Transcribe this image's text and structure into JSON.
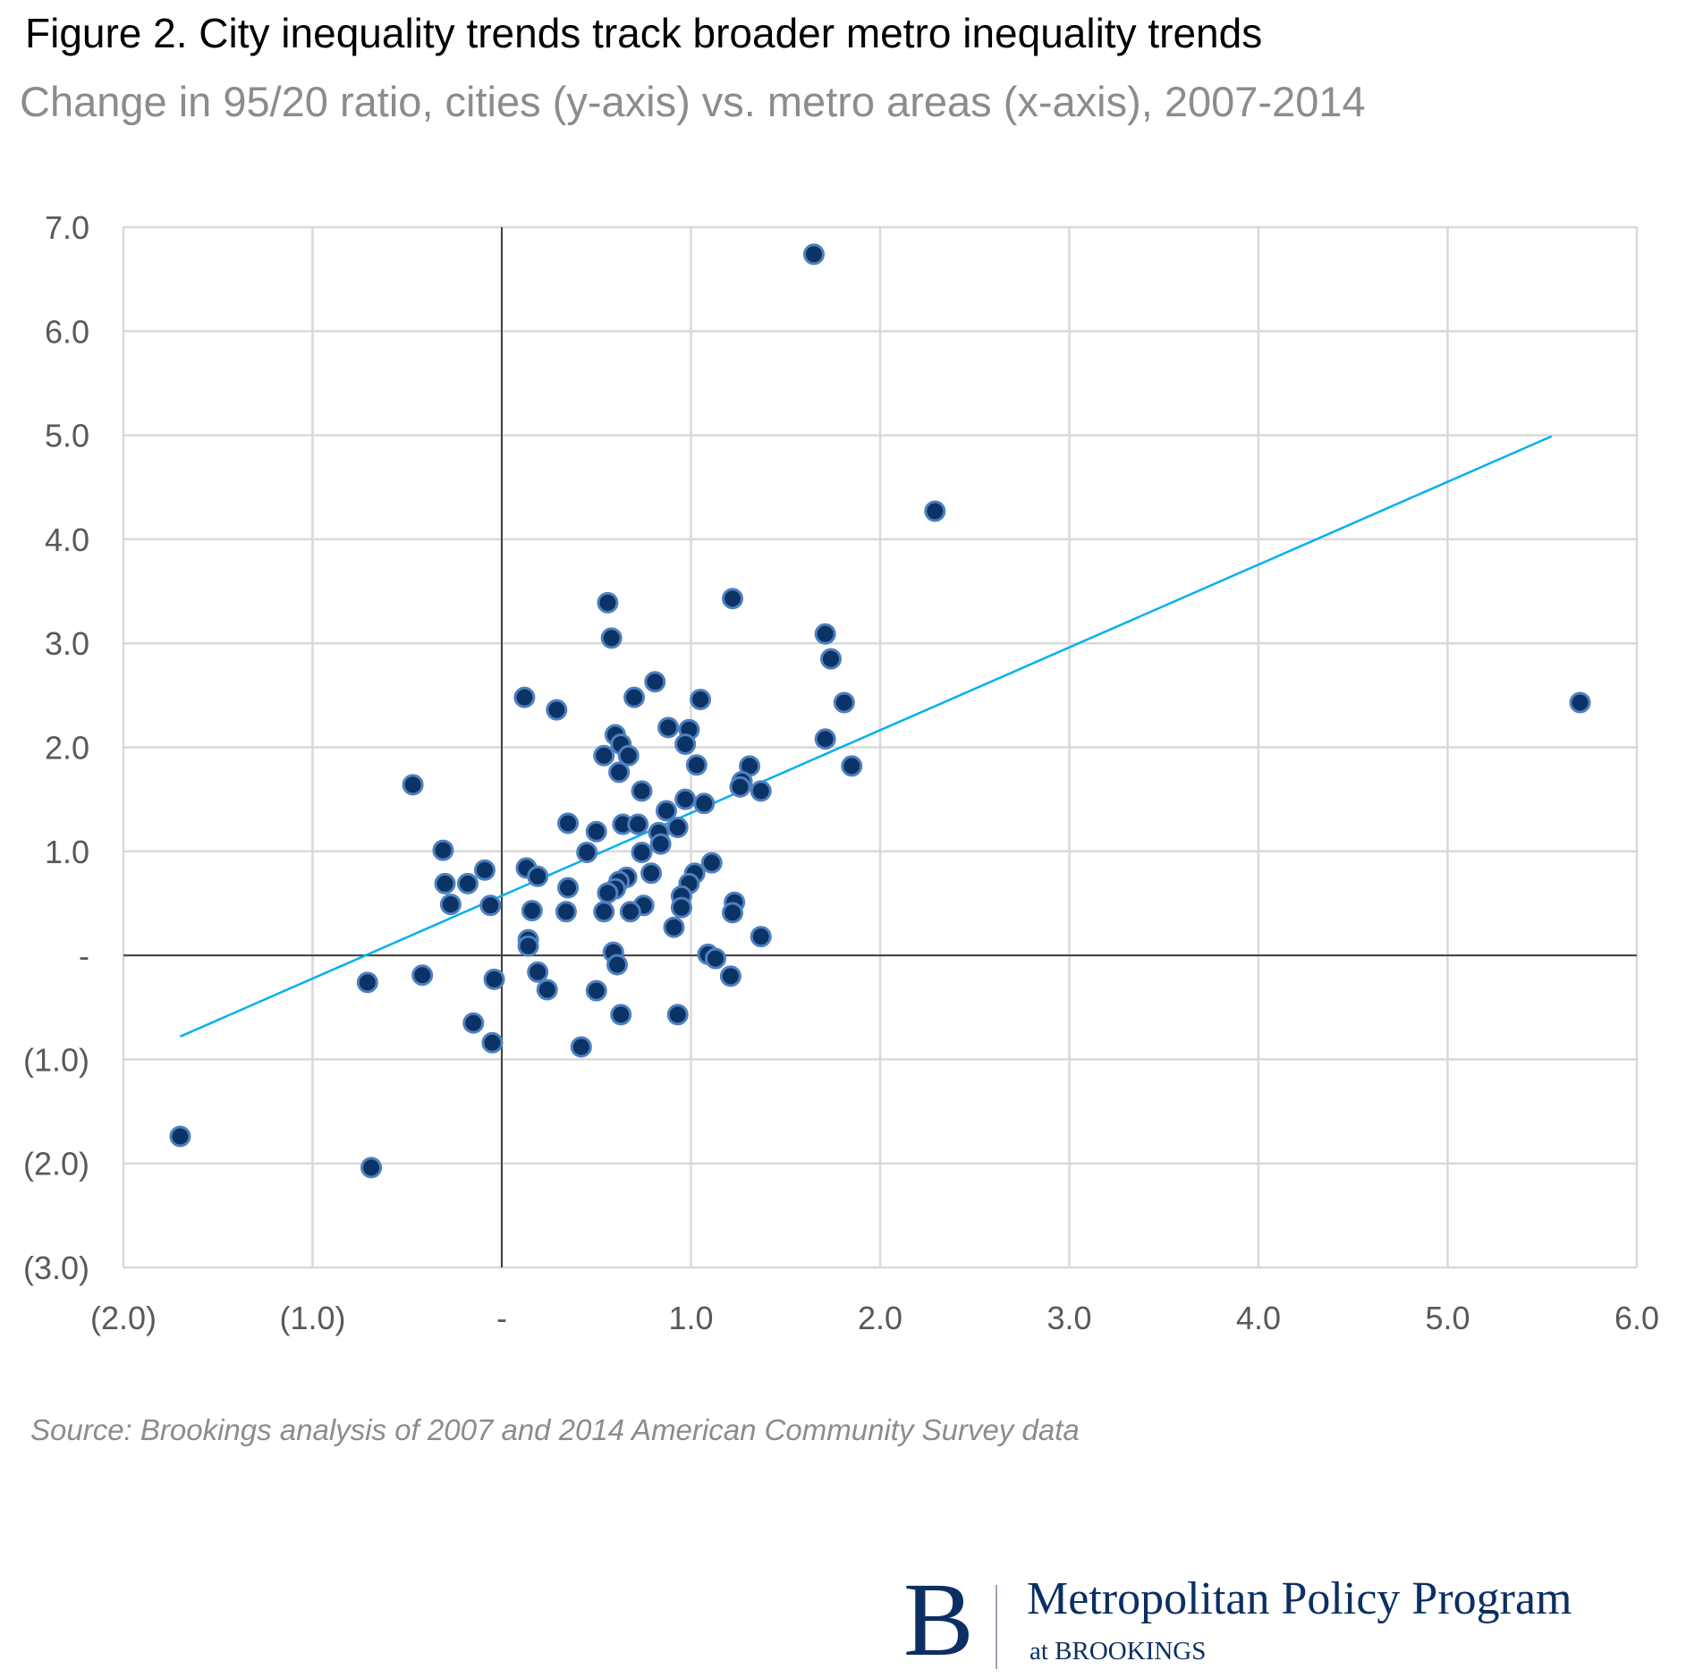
{
  "header": {
    "title": "Figure 2. City inequality trends track broader metro inequality trends",
    "subtitle": "Change in 95/20 ratio, cities (y-axis) vs. metro areas (x-axis), 2007-2014"
  },
  "source": "Source: Brookings analysis of 2007 and 2014 American Community Survey data",
  "logo": {
    "letter": "B",
    "name": "Metropolitan Policy Program",
    "sub": "at BROOKINGS"
  },
  "colors": {
    "point_fill": "#0b3366",
    "point_stroke": "#4f80c0",
    "trendline": "#00b0f0",
    "grid": "#d9d9d9",
    "axis": "#404040",
    "brand": "#0b2f63"
  },
  "chart_data": {
    "type": "scatter",
    "title": "Figure 2. City inequality trends track broader metro inequality trends",
    "subtitle": "Change in 95/20 ratio, cities (y-axis) vs. metro areas (x-axis), 2007-2014",
    "xlabel": "",
    "ylabel": "",
    "xlim": [
      -2,
      6
    ],
    "ylim": [
      -3,
      7
    ],
    "grid": true,
    "legend": "none",
    "x_ticks": [
      -2,
      -1,
      0,
      1,
      2,
      3,
      4,
      5,
      6
    ],
    "x_tick_labels": [
      "(2.0)",
      "(1.0)",
      "-",
      "1.0",
      "2.0",
      "3.0",
      "4.0",
      "5.0",
      "6.0"
    ],
    "y_ticks": [
      7,
      6,
      5,
      4,
      3,
      2,
      1,
      0,
      -1,
      -2,
      -3
    ],
    "y_tick_labels": [
      "7.0",
      "6.0",
      "5.0",
      "4.0",
      "3.0",
      "2.0",
      "1.0",
      "-",
      "(1.0)",
      "(2.0)",
      "(3.0)"
    ],
    "trendline": {
      "x": [
        -1.7,
        5.55
      ],
      "y": [
        -0.78,
        4.99
      ]
    },
    "points": [
      [
        1.65,
        6.74
      ],
      [
        2.29,
        4.27
      ],
      [
        5.7,
        2.43
      ],
      [
        -1.7,
        -1.74
      ],
      [
        -0.69,
        -2.04
      ],
      [
        0.56,
        3.39
      ],
      [
        1.22,
        3.43
      ],
      [
        0.58,
        3.05
      ],
      [
        1.71,
        3.09
      ],
      [
        1.74,
        2.85
      ],
      [
        0.81,
        2.63
      ],
      [
        0.12,
        2.48
      ],
      [
        0.29,
        2.36
      ],
      [
        0.7,
        2.48
      ],
      [
        1.05,
        2.46
      ],
      [
        1.81,
        2.43
      ],
      [
        0.88,
        2.19
      ],
      [
        0.99,
        2.17
      ],
      [
        0.6,
        2.12
      ],
      [
        0.63,
        2.03
      ],
      [
        0.97,
        2.03
      ],
      [
        1.71,
        2.08
      ],
      [
        0.54,
        1.92
      ],
      [
        0.67,
        1.92
      ],
      [
        1.03,
        1.83
      ],
      [
        1.31,
        1.82
      ],
      [
        1.85,
        1.82
      ],
      [
        0.62,
        1.76
      ],
      [
        -0.47,
        1.64
      ],
      [
        1.27,
        1.67
      ],
      [
        1.26,
        1.62
      ],
      [
        1.37,
        1.58
      ],
      [
        0.74,
        1.58
      ],
      [
        0.97,
        1.5
      ],
      [
        1.07,
        1.46
      ],
      [
        0.87,
        1.39
      ],
      [
        0.35,
        1.27
      ],
      [
        0.64,
        1.26
      ],
      [
        0.72,
        1.26
      ],
      [
        0.93,
        1.23
      ],
      [
        0.5,
        1.19
      ],
      [
        0.83,
        1.18
      ],
      [
        0.84,
        1.07
      ],
      [
        0.45,
        0.99
      ],
      [
        0.74,
        0.99
      ],
      [
        -0.31,
        1.01
      ],
      [
        1.11,
        0.89
      ],
      [
        -0.09,
        0.82
      ],
      [
        0.13,
        0.84
      ],
      [
        0.79,
        0.79
      ],
      [
        1.02,
        0.79
      ],
      [
        0.19,
        0.76
      ],
      [
        0.66,
        0.75
      ],
      [
        0.62,
        0.71
      ],
      [
        -0.3,
        0.69
      ],
      [
        -0.18,
        0.69
      ],
      [
        0.99,
        0.69
      ],
      [
        0.35,
        0.65
      ],
      [
        0.6,
        0.64
      ],
      [
        0.56,
        0.6
      ],
      [
        0.95,
        0.57
      ],
      [
        -0.27,
        0.49
      ],
      [
        -0.06,
        0.48
      ],
      [
        0.75,
        0.48
      ],
      [
        1.23,
        0.51
      ],
      [
        0.95,
        0.46
      ],
      [
        0.16,
        0.43
      ],
      [
        0.34,
        0.42
      ],
      [
        0.54,
        0.42
      ],
      [
        0.68,
        0.42
      ],
      [
        1.22,
        0.41
      ],
      [
        0.91,
        0.27
      ],
      [
        1.37,
        0.18
      ],
      [
        0.14,
        0.15
      ],
      [
        0.14,
        0.09
      ],
      [
        0.59,
        0.03
      ],
      [
        1.09,
        0.01
      ],
      [
        1.13,
        -0.03
      ],
      [
        0.61,
        -0.09
      ],
      [
        -0.42,
        -0.19
      ],
      [
        0.19,
        -0.16
      ],
      [
        1.21,
        -0.2
      ],
      [
        -0.71,
        -0.26
      ],
      [
        -0.04,
        -0.23
      ],
      [
        0.24,
        -0.33
      ],
      [
        0.5,
        -0.34
      ],
      [
        0.63,
        -0.57
      ],
      [
        0.93,
        -0.57
      ],
      [
        -0.15,
        -0.65
      ],
      [
        -0.05,
        -0.84
      ],
      [
        0.42,
        -0.88
      ]
    ]
  }
}
